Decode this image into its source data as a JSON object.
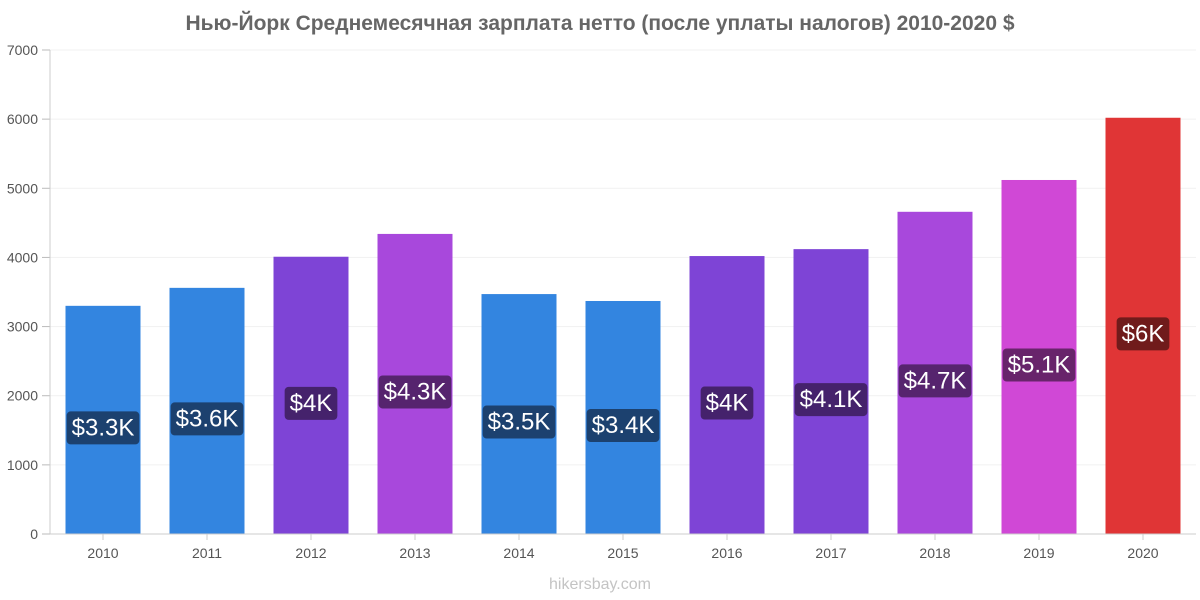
{
  "chart_data": {
    "type": "bar",
    "title": "Нью-Йорк Среднемесячная зарплата нетто (после уплаты налогов) 2010-2020 $",
    "xlabel": "",
    "ylabel": "",
    "ylim": [
      0,
      7000
    ],
    "yticks": [
      0,
      1000,
      2000,
      3000,
      4000,
      5000,
      6000,
      7000
    ],
    "grid": true,
    "categories": [
      "2010",
      "2011",
      "2012",
      "2013",
      "2014",
      "2015",
      "2016",
      "2017",
      "2018",
      "2019",
      "2020"
    ],
    "values": [
      3300,
      3560,
      4010,
      4340,
      3470,
      3370,
      4020,
      4120,
      4660,
      5120,
      6020
    ],
    "data_labels": [
      "$3.3K",
      "$3.6K",
      "$4K",
      "$4.3K",
      "$3.5K",
      "$3.4K",
      "$4K",
      "$4.1K",
      "$4.7K",
      "$5.1K",
      "$6K"
    ],
    "bar_colors": [
      "#3385e0",
      "#3385e0",
      "#7e44d6",
      "#a848dc",
      "#3385e0",
      "#3385e0",
      "#7e44d6",
      "#7e44d6",
      "#a848dc",
      "#d048d6",
      "#e03536"
    ],
    "label_bg_colors": [
      "#1c416f",
      "#1c416f",
      "#45226c",
      "#56246e",
      "#1c416f",
      "#1c416f",
      "#45226c",
      "#45226c",
      "#56246e",
      "#68246b",
      "#701b1b"
    ]
  },
  "watermark": "hikersbay.com"
}
